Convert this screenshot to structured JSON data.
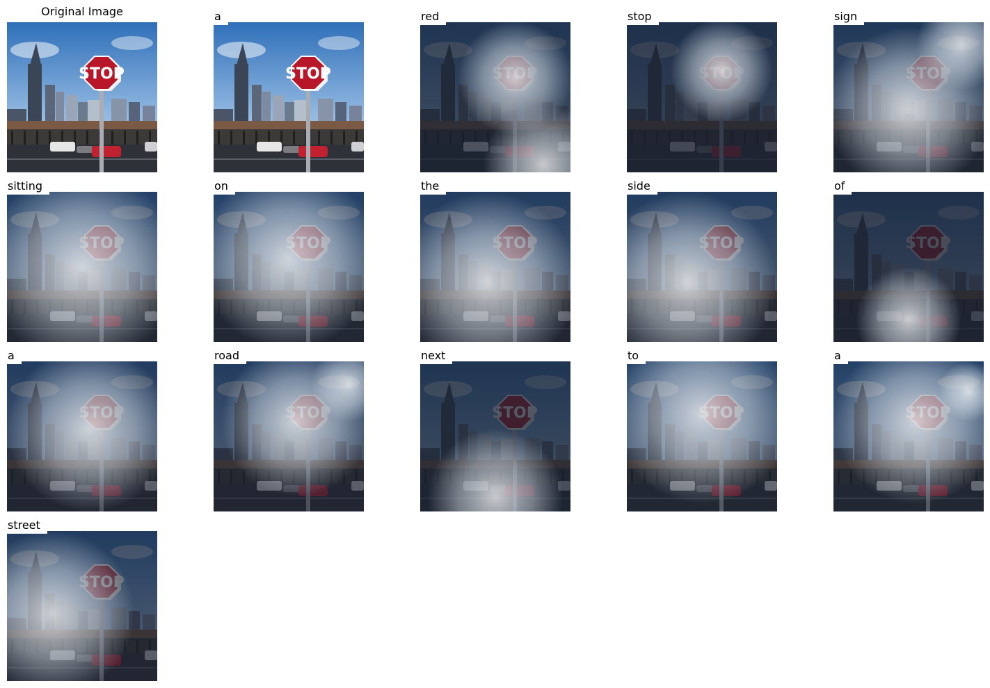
{
  "title": "Original Image",
  "panels": [
    {
      "word": "a",
      "attention": [],
      "dim": 0
    },
    {
      "word": "red",
      "attention": [
        [
          0.63,
          0.37,
          0.38
        ],
        [
          0.82,
          0.95,
          0.4
        ]
      ],
      "dim": 0.75
    },
    {
      "word": "stop",
      "attention": [
        [
          0.63,
          0.32,
          0.34
        ]
      ],
      "dim": 0.8
    },
    {
      "word": "sign",
      "attention": [
        [
          0.5,
          0.58,
          0.55
        ],
        [
          0.85,
          0.15,
          0.3
        ]
      ],
      "dim": 0.7
    },
    {
      "word": "sitting",
      "attention": [
        [
          0.5,
          0.5,
          0.65
        ]
      ],
      "dim": 0.6
    },
    {
      "word": "on",
      "attention": [
        [
          0.5,
          0.45,
          0.6
        ]
      ],
      "dim": 0.6
    },
    {
      "word": "the",
      "attention": [
        [
          0.45,
          0.6,
          0.6
        ]
      ],
      "dim": 0.65
    },
    {
      "word": "side",
      "attention": [
        [
          0.4,
          0.6,
          0.6
        ]
      ],
      "dim": 0.65
    },
    {
      "word": "of",
      "attention": [
        [
          0.5,
          0.85,
          0.35
        ]
      ],
      "dim": 0.8
    },
    {
      "word": "a",
      "attention": [
        [
          0.55,
          0.45,
          0.55
        ]
      ],
      "dim": 0.65
    },
    {
      "word": "road",
      "attention": [
        [
          0.55,
          0.4,
          0.5
        ],
        [
          0.9,
          0.15,
          0.25
        ]
      ],
      "dim": 0.65
    },
    {
      "word": "next",
      "attention": [
        [
          0.5,
          0.9,
          0.45
        ]
      ],
      "dim": 0.75
    },
    {
      "word": "to",
      "attention": [
        [
          0.5,
          0.35,
          0.6
        ]
      ],
      "dim": 0.6
    },
    {
      "word": "a",
      "attention": [
        [
          0.55,
          0.4,
          0.55
        ],
        [
          0.9,
          0.2,
          0.2
        ]
      ],
      "dim": 0.6
    },
    {
      "word": "street",
      "attention": [
        [
          0.3,
          0.55,
          0.55
        ]
      ],
      "dim": 0.65
    }
  ]
}
